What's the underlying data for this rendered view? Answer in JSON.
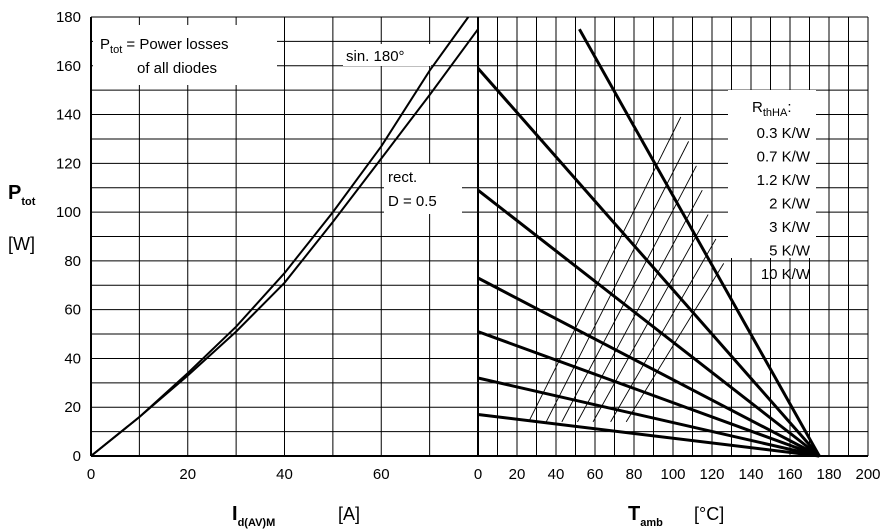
{
  "chart_data": {
    "type": "line",
    "grid": true,
    "y_axis": {
      "label_main": "P",
      "label_sub": "tot",
      "unit": "[W]",
      "range": [
        0,
        180
      ],
      "ticks": [
        "0",
        "20",
        "40",
        "60",
        "80",
        "100",
        "120",
        "140",
        "160",
        "180"
      ]
    },
    "left_panel": {
      "x_axis": {
        "label_main": "I",
        "label_sub": "d(AV)M",
        "unit": "[A]",
        "range": [
          0,
          80
        ],
        "ticks": [
          "0",
          "20",
          "40",
          "60"
        ]
      },
      "note_line1_main": "P",
      "note_line1_sub": "tot",
      "note_line1_rest": " = Power losses",
      "note_line2": "of all diodes",
      "series": [
        {
          "name": "sin. 180°",
          "x": [
            0,
            10,
            20,
            30,
            40,
            50,
            60,
            70,
            78
          ],
          "y": [
            0,
            16,
            34,
            53,
            75,
            100,
            127,
            158,
            180
          ]
        },
        {
          "name": "rect.",
          "name_line2": "D = 0.5",
          "x": [
            0,
            10,
            20,
            30,
            40,
            50,
            60,
            70,
            80
          ],
          "y": [
            0,
            16,
            33,
            51,
            71,
            96,
            122,
            148,
            175
          ]
        }
      ]
    },
    "right_panel": {
      "x_axis": {
        "label_main": "T",
        "label_sub": "amb",
        "unit": "[°C]",
        "range": [
          0,
          200
        ],
        "ticks": [
          "0",
          "20",
          "40",
          "60",
          "80",
          "100",
          "120",
          "140",
          "160",
          "180",
          "200"
        ]
      },
      "legend_title_main": "R",
      "legend_title_sub": "thHA",
      "legend_title_suffix": ":",
      "series": [
        {
          "name": "0.3 K/W",
          "x": [
            52,
            175
          ],
          "y": [
            175,
            0
          ]
        },
        {
          "name": "0.7 K/W",
          "x": [
            0,
            175
          ],
          "y": [
            159,
            0
          ]
        },
        {
          "name": "1.2 K/W",
          "x": [
            0,
            175
          ],
          "y": [
            109,
            0
          ]
        },
        {
          "name": "2 K/W",
          "x": [
            0,
            175
          ],
          "y": [
            73,
            0
          ]
        },
        {
          "name": "3 K/W",
          "x": [
            0,
            175
          ],
          "y": [
            51,
            0
          ]
        },
        {
          "name": "5 K/W",
          "x": [
            0,
            175
          ],
          "y": [
            32,
            0
          ]
        },
        {
          "name": "10 K/W",
          "x": [
            0,
            175
          ],
          "y": [
            17,
            0
          ]
        }
      ],
      "leader_lines": [
        {
          "x": [
            26,
            104
          ],
          "y": [
            14,
            139
          ]
        },
        {
          "x": [
            35,
            108
          ],
          "y": [
            14,
            129
          ]
        },
        {
          "x": [
            43,
            112
          ],
          "y": [
            14,
            119
          ]
        },
        {
          "x": [
            51,
            115
          ],
          "y": [
            14,
            109
          ]
        },
        {
          "x": [
            59,
            118
          ],
          "y": [
            14,
            99
          ]
        },
        {
          "x": [
            68,
            122
          ],
          "y": [
            14,
            89
          ]
        },
        {
          "x": [
            76,
            126
          ],
          "y": [
            14,
            79
          ]
        }
      ]
    }
  }
}
